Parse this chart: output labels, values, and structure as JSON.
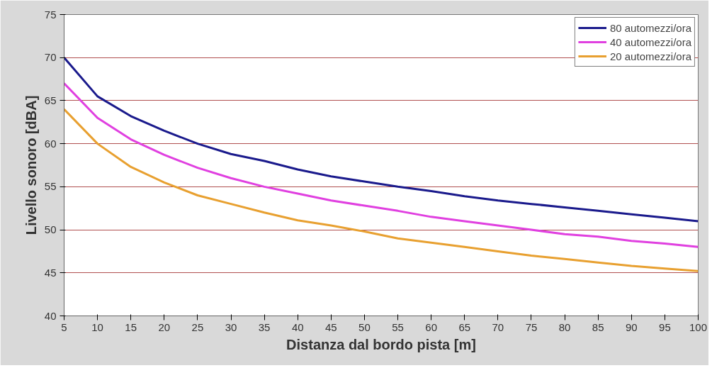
{
  "chart_data": {
    "type": "line",
    "xlabel": "Distanza dal bordo pista [m]",
    "ylabel": "Livello sonoro [dBA]",
    "x": [
      5,
      10,
      15,
      20,
      25,
      30,
      35,
      40,
      45,
      50,
      55,
      60,
      65,
      70,
      75,
      80,
      85,
      90,
      95,
      100
    ],
    "series": [
      {
        "name": "80 automezzi/ora",
        "color": "#1a1a8c",
        "values": [
          70,
          65.5,
          63.2,
          61.5,
          60,
          58.8,
          58,
          57,
          56.2,
          55.6,
          55,
          54.5,
          53.9,
          53.4,
          53,
          52.6,
          52.2,
          51.8,
          51.4,
          51
        ]
      },
      {
        "name": "40 automezzi/ora",
        "color": "#e040e0",
        "values": [
          67,
          63,
          60.5,
          58.7,
          57.2,
          56,
          55,
          54.2,
          53.4,
          52.8,
          52.2,
          51.5,
          51,
          50.5,
          50,
          49.5,
          49.2,
          48.7,
          48.4,
          48
        ]
      },
      {
        "name": "20 automezzi/ora",
        "color": "#e8a030",
        "values": [
          64,
          60,
          57.3,
          55.5,
          54,
          53,
          52,
          51.1,
          50.5,
          49.8,
          49,
          48.5,
          48,
          47.5,
          47,
          46.6,
          46.2,
          45.8,
          45.5,
          45.2
        ]
      }
    ],
    "xlim": [
      5,
      100
    ],
    "xticks": [
      5,
      10,
      15,
      20,
      25,
      30,
      35,
      40,
      45,
      50,
      55,
      60,
      65,
      70,
      75,
      80,
      85,
      90,
      95,
      100
    ],
    "ylim": [
      40,
      75
    ],
    "yticks": [
      40,
      45,
      50,
      55,
      60,
      65,
      70,
      75
    ],
    "grid": "y",
    "legend": "top right",
    "marker": "none",
    "line_style": "solid"
  }
}
